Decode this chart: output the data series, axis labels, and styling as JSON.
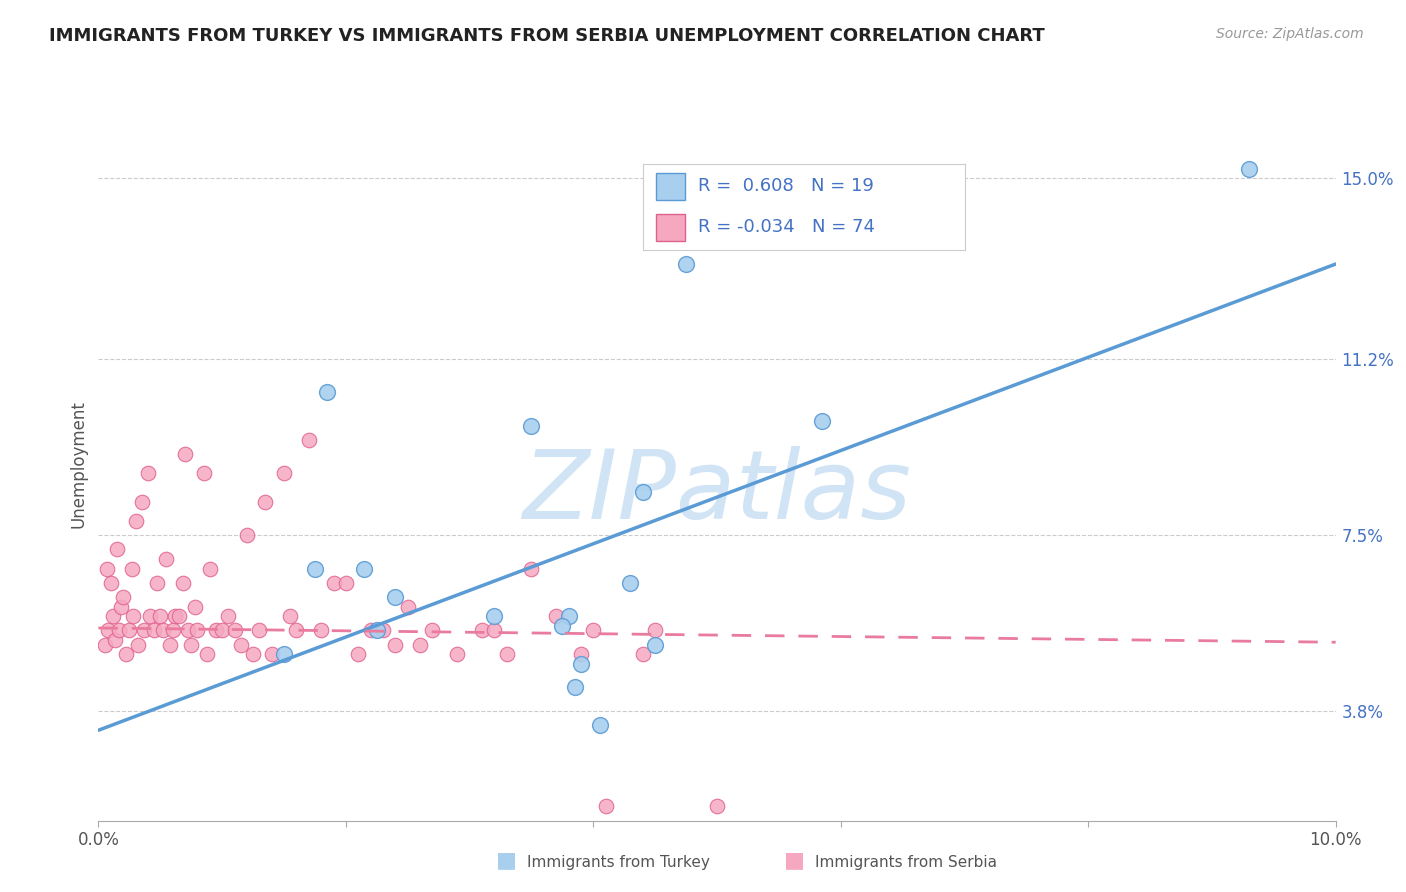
{
  "title": "IMMIGRANTS FROM TURKEY VS IMMIGRANTS FROM SERBIA UNEMPLOYMENT CORRELATION CHART",
  "source": "Source: ZipAtlas.com",
  "ylabel": "Unemployment",
  "ytick_labels": [
    "3.8%",
    "7.5%",
    "11.2%",
    "15.0%"
  ],
  "ytick_values": [
    3.8,
    7.5,
    11.2,
    15.0
  ],
  "xlim": [
    0.0,
    10.0
  ],
  "ylim": [
    1.5,
    16.5
  ],
  "legend_turkey_R": "0.608",
  "legend_turkey_N": "19",
  "legend_serbia_R": "-0.034",
  "legend_serbia_N": "74",
  "color_turkey": "#A8CFEE",
  "color_turkey_edge": "#5B9BD5",
  "color_serbia": "#F5A8C0",
  "color_serbia_edge": "#E06090",
  "color_turkey_line": "#5B9BD5",
  "color_serbia_line": "#E87B9E",
  "watermark_color": "#D0E4F5",
  "turkey_x": [
    9.3,
    4.75,
    1.85,
    3.5,
    4.4,
    5.85,
    2.15,
    2.4,
    1.5,
    4.3,
    3.8,
    3.75,
    1.75,
    2.25,
    4.5,
    3.2,
    3.9,
    3.85,
    4.05
  ],
  "turkey_y": [
    15.2,
    13.2,
    10.5,
    9.8,
    8.4,
    9.9,
    6.8,
    6.2,
    5.0,
    6.5,
    5.8,
    5.6,
    6.8,
    5.5,
    5.2,
    5.8,
    4.8,
    4.3,
    3.5
  ],
  "serbia_x": [
    0.05,
    0.07,
    0.08,
    0.1,
    0.12,
    0.13,
    0.15,
    0.17,
    0.18,
    0.2,
    0.22,
    0.25,
    0.27,
    0.28,
    0.3,
    0.32,
    0.35,
    0.37,
    0.4,
    0.42,
    0.45,
    0.47,
    0.5,
    0.52,
    0.55,
    0.58,
    0.6,
    0.62,
    0.65,
    0.68,
    0.7,
    0.72,
    0.75,
    0.78,
    0.8,
    0.85,
    0.88,
    0.9,
    0.95,
    1.0,
    1.05,
    1.1,
    1.15,
    1.2,
    1.25,
    1.3,
    1.35,
    1.4,
    1.5,
    1.55,
    1.6,
    1.7,
    1.8,
    1.9,
    2.0,
    2.1,
    2.2,
    2.3,
    2.4,
    2.5,
    2.6,
    2.7,
    2.9,
    3.1,
    3.2,
    3.3,
    3.5,
    3.7,
    3.9,
    4.0,
    4.1,
    4.4,
    4.5,
    5.0
  ],
  "serbia_y": [
    5.2,
    6.8,
    5.5,
    6.5,
    5.8,
    5.3,
    7.2,
    5.5,
    6.0,
    6.2,
    5.0,
    5.5,
    6.8,
    5.8,
    7.8,
    5.2,
    8.2,
    5.5,
    8.8,
    5.8,
    5.5,
    6.5,
    5.8,
    5.5,
    7.0,
    5.2,
    5.5,
    5.8,
    5.8,
    6.5,
    9.2,
    5.5,
    5.2,
    6.0,
    5.5,
    8.8,
    5.0,
    6.8,
    5.5,
    5.5,
    5.8,
    5.5,
    5.2,
    7.5,
    5.0,
    5.5,
    8.2,
    5.0,
    8.8,
    5.8,
    5.5,
    9.5,
    5.5,
    6.5,
    6.5,
    5.0,
    5.5,
    5.5,
    5.2,
    6.0,
    5.2,
    5.5,
    5.0,
    5.5,
    5.5,
    5.0,
    6.8,
    5.8,
    5.0,
    5.5,
    1.8,
    5.0,
    5.5,
    1.8
  ],
  "turkey_line_x": [
    0.0,
    10.0
  ],
  "turkey_line_y": [
    3.4,
    13.2
  ],
  "serbia_line_x": [
    0.0,
    10.0
  ],
  "serbia_line_y": [
    5.55,
    5.25
  ]
}
